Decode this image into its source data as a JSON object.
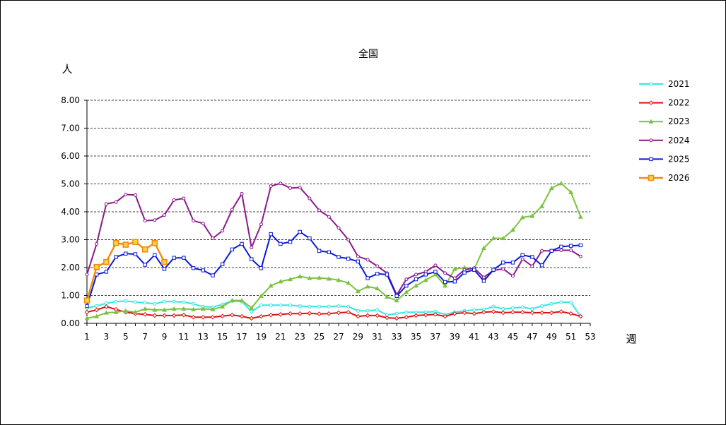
{
  "chart_data": {
    "type": "line",
    "title": "全国",
    "ylabel": "人",
    "xlabel": "週",
    "ylim": [
      0,
      8
    ],
    "yticks": [
      "0.00",
      "1.00",
      "2.00",
      "3.00",
      "4.00",
      "5.00",
      "6.00",
      "7.00",
      "8.00"
    ],
    "xlim": [
      1,
      53
    ],
    "xticks": [
      1,
      3,
      5,
      7,
      9,
      11,
      13,
      15,
      17,
      19,
      21,
      23,
      25,
      27,
      29,
      31,
      33,
      35,
      37,
      39,
      41,
      43,
      45,
      47,
      49,
      51,
      53
    ],
    "grid": "horizontal dashed",
    "legend": "right",
    "series": [
      {
        "name": "2021",
        "color": "#33e6e6",
        "marker": "circle",
        "values": [
          0.55,
          0.62,
          0.72,
          0.78,
          0.8,
          0.76,
          0.74,
          0.7,
          0.78,
          0.78,
          0.76,
          0.7,
          0.6,
          0.58,
          0.68,
          0.8,
          0.78,
          0.42,
          0.65,
          0.65,
          0.65,
          0.65,
          0.62,
          0.6,
          0.6,
          0.6,
          0.62,
          0.6,
          0.45,
          0.45,
          0.48,
          0.3,
          0.35,
          0.4,
          0.4,
          0.4,
          0.42,
          0.32,
          0.4,
          0.45,
          0.48,
          0.5,
          0.6,
          0.52,
          0.55,
          0.58,
          0.52,
          0.62,
          0.7,
          0.76,
          0.75,
          0.25
        ]
      },
      {
        "name": "2022",
        "color": "#e01010",
        "marker": "diamond",
        "values": [
          0.4,
          0.48,
          0.6,
          0.5,
          0.4,
          0.35,
          0.32,
          0.28,
          0.28,
          0.28,
          0.3,
          0.22,
          0.22,
          0.22,
          0.26,
          0.3,
          0.25,
          0.18,
          0.25,
          0.3,
          0.32,
          0.35,
          0.35,
          0.36,
          0.34,
          0.35,
          0.38,
          0.4,
          0.25,
          0.28,
          0.28,
          0.2,
          0.18,
          0.22,
          0.28,
          0.3,
          0.32,
          0.25,
          0.35,
          0.38,
          0.35,
          0.4,
          0.42,
          0.38,
          0.4,
          0.4,
          0.38,
          0.38,
          0.38,
          0.42,
          0.35,
          0.25
        ]
      },
      {
        "name": "2023",
        "color": "#7cc240",
        "marker": "triangle",
        "values": [
          0.18,
          0.25,
          0.38,
          0.4,
          0.45,
          0.4,
          0.52,
          0.48,
          0.48,
          0.52,
          0.52,
          0.5,
          0.52,
          0.5,
          0.6,
          0.82,
          0.82,
          0.55,
          0.98,
          1.35,
          1.5,
          1.58,
          1.68,
          1.62,
          1.63,
          1.6,
          1.55,
          1.45,
          1.15,
          1.32,
          1.25,
          0.95,
          0.82,
          1.12,
          1.35,
          1.55,
          1.75,
          1.35,
          1.95,
          2.0,
          1.95,
          2.7,
          3.05,
          3.05,
          3.35,
          3.8,
          3.85,
          4.2,
          4.85,
          5.02,
          4.7,
          3.82
        ]
      },
      {
        "name": "2024",
        "color": "#8a1a8a",
        "marker": "circle",
        "values": [
          1.75,
          2.85,
          4.28,
          4.35,
          4.62,
          4.6,
          3.68,
          3.7,
          3.88,
          4.42,
          4.48,
          3.68,
          3.58,
          3.05,
          3.32,
          4.08,
          4.65,
          2.72,
          3.55,
          4.92,
          5.02,
          4.85,
          4.87,
          4.48,
          4.05,
          3.82,
          3.42,
          3.0,
          2.4,
          2.28,
          2.05,
          1.8,
          1.02,
          1.58,
          1.75,
          1.85,
          2.08,
          1.8,
          1.62,
          1.92,
          1.98,
          1.65,
          1.9,
          1.95,
          1.7,
          2.3,
          2.05,
          2.6,
          2.6,
          2.62,
          2.62,
          2.4
        ]
      },
      {
        "name": "2025",
        "color": "#0a1ad8",
        "marker": "square",
        "values": [
          0.62,
          1.75,
          1.85,
          2.38,
          2.5,
          2.48,
          2.1,
          2.45,
          1.95,
          2.35,
          2.35,
          1.98,
          1.9,
          1.72,
          2.12,
          2.65,
          2.85,
          2.3,
          1.98,
          3.2,
          2.85,
          2.92,
          3.28,
          3.05,
          2.6,
          2.55,
          2.38,
          2.32,
          2.22,
          1.62,
          1.78,
          1.75,
          0.98,
          1.35,
          1.58,
          1.75,
          1.85,
          1.48,
          1.5,
          1.82,
          1.92,
          1.52,
          1.92,
          2.18,
          2.18,
          2.45,
          2.38,
          2.08,
          2.6,
          2.75,
          2.78,
          2.8
        ]
      },
      {
        "name": "2026",
        "color": "#f08a10",
        "marker": "square",
        "values": [
          0.82,
          2.02,
          2.2,
          2.88,
          2.82,
          2.92,
          2.65,
          2.88,
          2.2
        ]
      }
    ]
  }
}
